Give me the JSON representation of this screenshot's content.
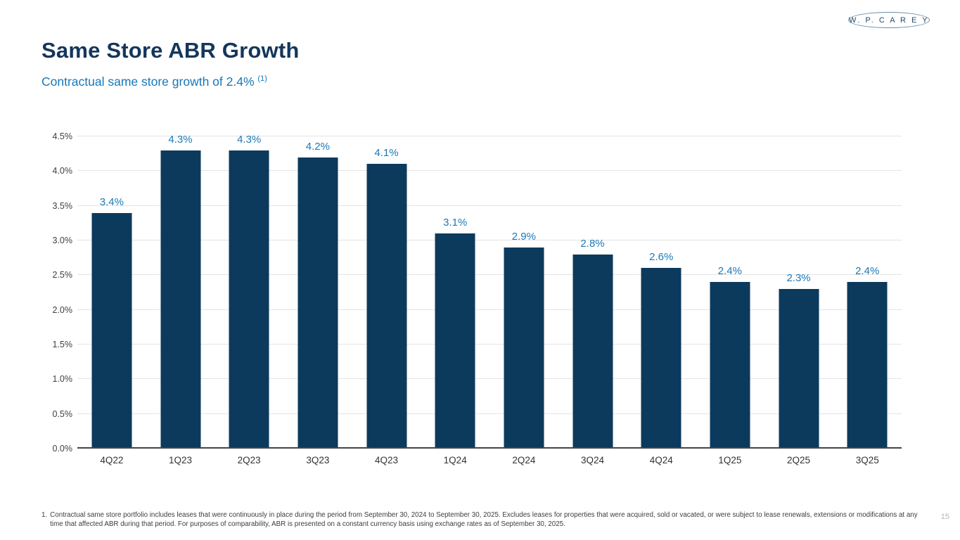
{
  "logo": {
    "text": "W. P. C A R E Y"
  },
  "header": {
    "title": "Same Store ABR Growth",
    "subtitle": "Contractual same store growth of 2.4%",
    "subtitle_superscript": "(1)"
  },
  "chart_data": {
    "type": "bar",
    "categories": [
      "4Q22",
      "1Q23",
      "2Q23",
      "3Q23",
      "4Q23",
      "1Q24",
      "2Q24",
      "3Q24",
      "4Q24",
      "1Q25",
      "2Q25",
      "3Q25"
    ],
    "values": [
      3.4,
      4.3,
      4.3,
      4.2,
      4.1,
      3.1,
      2.9,
      2.8,
      2.6,
      2.4,
      2.3,
      2.4
    ],
    "value_labels": [
      "3.4%",
      "4.3%",
      "4.3%",
      "4.2%",
      "4.1%",
      "3.1%",
      "2.9%",
      "2.8%",
      "2.6%",
      "2.4%",
      "2.3%",
      "2.4%"
    ],
    "title": "",
    "xlabel": "",
    "ylabel": "",
    "ylim": [
      0,
      4.5
    ],
    "ytick_step": 0.5,
    "ytick_labels": [
      "0.0%",
      "0.5%",
      "1.0%",
      "1.5%",
      "2.0%",
      "2.5%",
      "3.0%",
      "3.5%",
      "4.0%",
      "4.5%"
    ],
    "grid": true,
    "legend": false,
    "bar_color": "#0c3a5c",
    "data_label_color": "#1b79b8"
  },
  "footnote": {
    "number": "1.",
    "text": "Contractual same store portfolio includes leases that were continuously in place during the period from September 30, 2024 to September 30, 2025. Excludes leases for properties that were acquired, sold or vacated, or were subject to lease renewals, extensions or modifications at any time that affected ABR during that period. For purposes of comparability, ABR is presented on a constant currency basis using exchange rates as of September 30, 2025."
  },
  "page_number": "15",
  "colors": {
    "title": "#14365c",
    "subtitle": "#1778b8",
    "bar": "#0c3a5c",
    "data_label": "#1b79b8",
    "gridline": "#e4e4e4",
    "axis_line": "#454545"
  }
}
